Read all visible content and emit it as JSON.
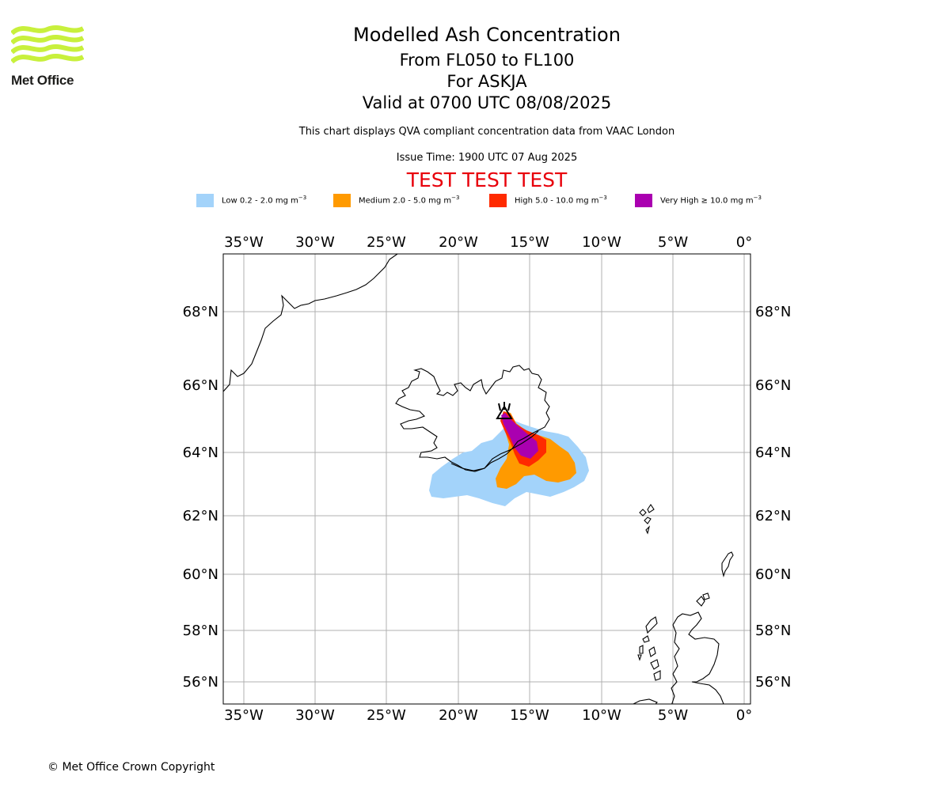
{
  "header": {
    "title": "Modelled Ash Concentration",
    "levels": "From FL050 to FL100",
    "volcano": "For ASKJA",
    "valid": "Valid at 0700 UTC 08/08/2025",
    "subtitle": "This chart displays QVA compliant concentration data from VAAC London",
    "issue_time": "Issue Time: 1900 UTC 07 Aug 2025",
    "test_banner": "TEST TEST TEST"
  },
  "logo": {
    "text": "Met Office",
    "color": "#c8f03c"
  },
  "legend": [
    {
      "label": "Low 0.2 - 2.0 mg m",
      "unit_exp": "−3",
      "color": "#a3d3fa"
    },
    {
      "label": "Medium 2.0 - 5.0 mg m",
      "unit_exp": "−3",
      "color": "#ff9a00"
    },
    {
      "label": "High 5.0 - 10.0 mg m",
      "unit_exp": "−3",
      "color": "#ff2a00"
    },
    {
      "label": "Very High  ≥  10.0 mg m",
      "unit_exp": "−3",
      "color": "#aa00b0"
    }
  ],
  "map": {
    "lon_labels": [
      "35°W",
      "30°W",
      "25°W",
      "20°W",
      "15°W",
      "10°W",
      "5°W",
      "0°"
    ],
    "lat_labels": [
      "68°N",
      "66°N",
      "64°N",
      "62°N",
      "60°N",
      "58°N",
      "56°N"
    ],
    "volcano_marker": "volcano-triangle-icon"
  },
  "footer": {
    "copyright": "© Met Office Crown Copyright"
  }
}
